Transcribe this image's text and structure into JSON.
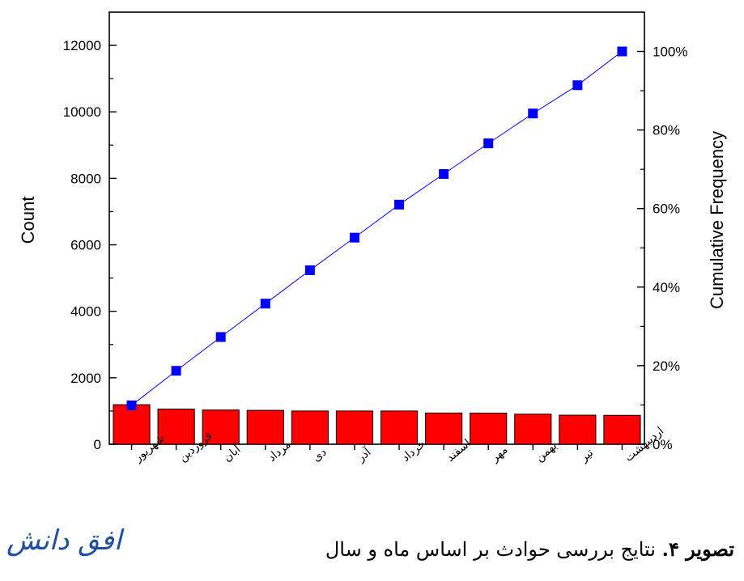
{
  "chart_data": {
    "type": "bar",
    "categories": [
      "شهریور",
      "فروردین",
      "آبان",
      "مرداد",
      "دی",
      "آذر",
      "خرداد",
      "اسفند",
      "مهر",
      "بهمن",
      "تیر",
      "اردیبهشت"
    ],
    "values": [
      1190,
      1060,
      1030,
      1020,
      1000,
      1000,
      1000,
      940,
      935,
      905,
      875,
      870
    ],
    "ylabel": "Count",
    "ylim": [
      0,
      13000
    ],
    "yticks": [
      0,
      2000,
      4000,
      6000,
      8000,
      10000,
      12000
    ],
    "secondary_axis": {
      "type": "line",
      "label": "Cumulative Frequency",
      "ylim": [
        0,
        110
      ],
      "yticks": [
        0,
        20,
        40,
        60,
        80,
        100
      ],
      "tick_suffix": "%",
      "values": [
        9.9,
        18.7,
        27.3,
        35.8,
        44.3,
        52.6,
        61.0,
        68.8,
        76.6,
        84.2,
        91.4,
        100.0
      ]
    },
    "bar_color": "#ff0000",
    "line_color": "#0000ff"
  },
  "caption": {
    "label": "تصویر ۴.",
    "text": " نتایج بررسی حوادث بر اساس ماه و سال"
  },
  "logo_text": "افق دانش"
}
